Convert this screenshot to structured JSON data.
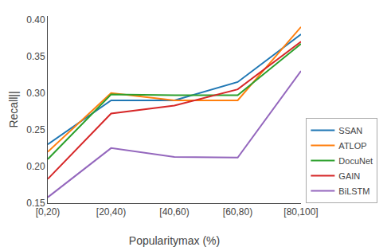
{
  "chart_data": {
    "type": "line",
    "categories": [
      "[0,20)",
      "[20,40)",
      "[40,60)",
      "[60,80)",
      "[80,100]"
    ],
    "series": [
      {
        "name": "SSAN",
        "color": "#1f77b4",
        "values": [
          0.23,
          0.29,
          0.29,
          0.315,
          0.38
        ]
      },
      {
        "name": "ATLOP",
        "color": "#ff7f0e",
        "values": [
          0.22,
          0.3,
          0.29,
          0.29,
          0.39
        ]
      },
      {
        "name": "DocuNet",
        "color": "#2ca02c",
        "values": [
          0.21,
          0.298,
          0.297,
          0.297,
          0.367
        ]
      },
      {
        "name": "GAIN",
        "color": "#d62728",
        "values": [
          0.183,
          0.272,
          0.283,
          0.305,
          0.37
        ]
      },
      {
        "name": "BiLSTM",
        "color": "#9467bd",
        "values": [
          0.158,
          0.225,
          0.213,
          0.212,
          0.33
        ]
      }
    ],
    "xlabel": "Popularitymax (%)",
    "ylabel": "Recall||",
    "ylim": [
      0.15,
      0.405
    ],
    "yticks": [
      0.15,
      {
        "value": 0.2,
        "label": "0.20"
      },
      0.25,
      {
        "value": 0.3,
        "label": "0.30"
      },
      0.35,
      {
        "value": 0.4,
        "label": "0.40"
      }
    ],
    "grid": false,
    "legend": "lower right"
  }
}
